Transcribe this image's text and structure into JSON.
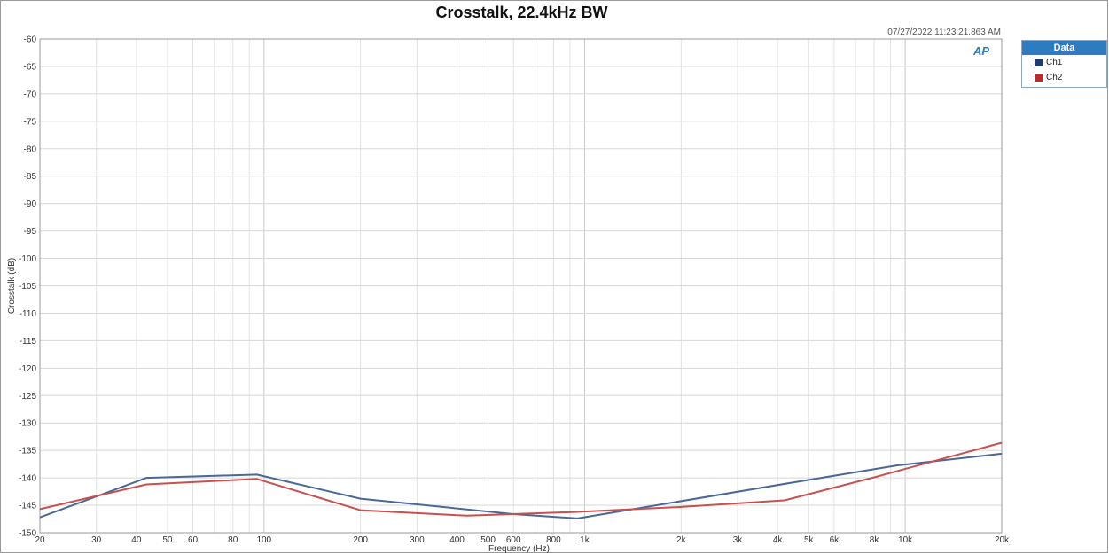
{
  "chart_data": {
    "type": "line",
    "title": "Crosstalk, 22.4kHz BW",
    "timestamp": "07/27/2022 11:23:21.863 AM",
    "xlabel": "Frequency (Hz)",
    "ylabel": "Crosstalk (dB)",
    "x_scale": "log",
    "xlim": [
      20,
      20000
    ],
    "ylim": [
      -150,
      -60
    ],
    "grid": true,
    "x_ticks": [
      {
        "v": 20,
        "label": "20"
      },
      {
        "v": 30,
        "label": "30"
      },
      {
        "v": 40,
        "label": "40"
      },
      {
        "v": 50,
        "label": "50"
      },
      {
        "v": 60,
        "label": "60"
      },
      {
        "v": 80,
        "label": "80"
      },
      {
        "v": 100,
        "label": "100"
      },
      {
        "v": 200,
        "label": "200"
      },
      {
        "v": 300,
        "label": "300"
      },
      {
        "v": 400,
        "label": "400"
      },
      {
        "v": 500,
        "label": "500"
      },
      {
        "v": 600,
        "label": "600"
      },
      {
        "v": 800,
        "label": "800"
      },
      {
        "v": 1000,
        "label": "1k"
      },
      {
        "v": 2000,
        "label": "2k"
      },
      {
        "v": 3000,
        "label": "3k"
      },
      {
        "v": 4000,
        "label": "4k"
      },
      {
        "v": 5000,
        "label": "5k"
      },
      {
        "v": 6000,
        "label": "6k"
      },
      {
        "v": 8000,
        "label": "8k"
      },
      {
        "v": 10000,
        "label": "10k"
      },
      {
        "v": 20000,
        "label": "20k"
      }
    ],
    "y_ticks": [
      "-60",
      "-65",
      "-70",
      "-75",
      "-80",
      "-85",
      "-90",
      "-95",
      "-100",
      "-105",
      "-110",
      "-115",
      "-120",
      "-125",
      "-130",
      "-135",
      "-140",
      "-145",
      "-150"
    ],
    "legend": {
      "title": "Data",
      "placement": "right"
    },
    "series": [
      {
        "name": "Ch1",
        "color": "#4a6896",
        "x": [
          20,
          43,
          95,
          200,
          600,
          950,
          4500,
          9500,
          20000
        ],
        "y": [
          -147.2,
          -140.0,
          -139.4,
          -143.8,
          -146.6,
          -147.4,
          -140.8,
          -137.7,
          -135.6
        ]
      },
      {
        "name": "Ch2",
        "color": "#c8504f",
        "x": [
          20,
          43,
          95,
          200,
          430,
          950,
          2000,
          4200,
          8000,
          20000
        ],
        "y": [
          -145.7,
          -141.2,
          -140.2,
          -145.9,
          -146.9,
          -146.2,
          -145.3,
          -144.1,
          -139.9,
          -133.6
        ]
      }
    ]
  },
  "legend_swatch_colors": {
    "Ch1": "#1f3a6e",
    "Ch2": "#c0292b"
  },
  "logo_text": "AP"
}
